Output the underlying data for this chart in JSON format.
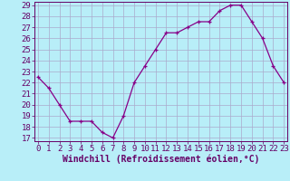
{
  "x_data": [
    0,
    1,
    2,
    3,
    4,
    5,
    6,
    7,
    8,
    9,
    10,
    11,
    12,
    13,
    14,
    15,
    16,
    17,
    18,
    19,
    20,
    21,
    22,
    23
  ],
  "y_data": [
    22.5,
    21.5,
    20.0,
    18.5,
    18.5,
    18.5,
    17.5,
    17.0,
    19.0,
    22.0,
    23.5,
    25.0,
    26.5,
    26.5,
    27.0,
    27.5,
    27.5,
    28.5,
    29.0,
    29.0,
    27.5,
    26.0,
    23.5,
    22.0
  ],
  "line_color": "#880088",
  "bg_color": "#b8eef8",
  "grid_color": "#aaaacc",
  "xlabel": "Windchill (Refroidissement éolien,°C)",
  "ylim_min": 17,
  "ylim_max": 29,
  "xlim_min": 0,
  "xlim_max": 23,
  "yticks": [
    17,
    18,
    19,
    20,
    21,
    22,
    23,
    24,
    25,
    26,
    27,
    28,
    29
  ],
  "xticks": [
    0,
    1,
    2,
    3,
    4,
    5,
    6,
    7,
    8,
    9,
    10,
    11,
    12,
    13,
    14,
    15,
    16,
    17,
    18,
    19,
    20,
    21,
    22,
    23
  ],
  "tick_font_size": 6.5,
  "xlabel_font_size": 7,
  "marker_size": 3.5,
  "line_width": 0.9
}
